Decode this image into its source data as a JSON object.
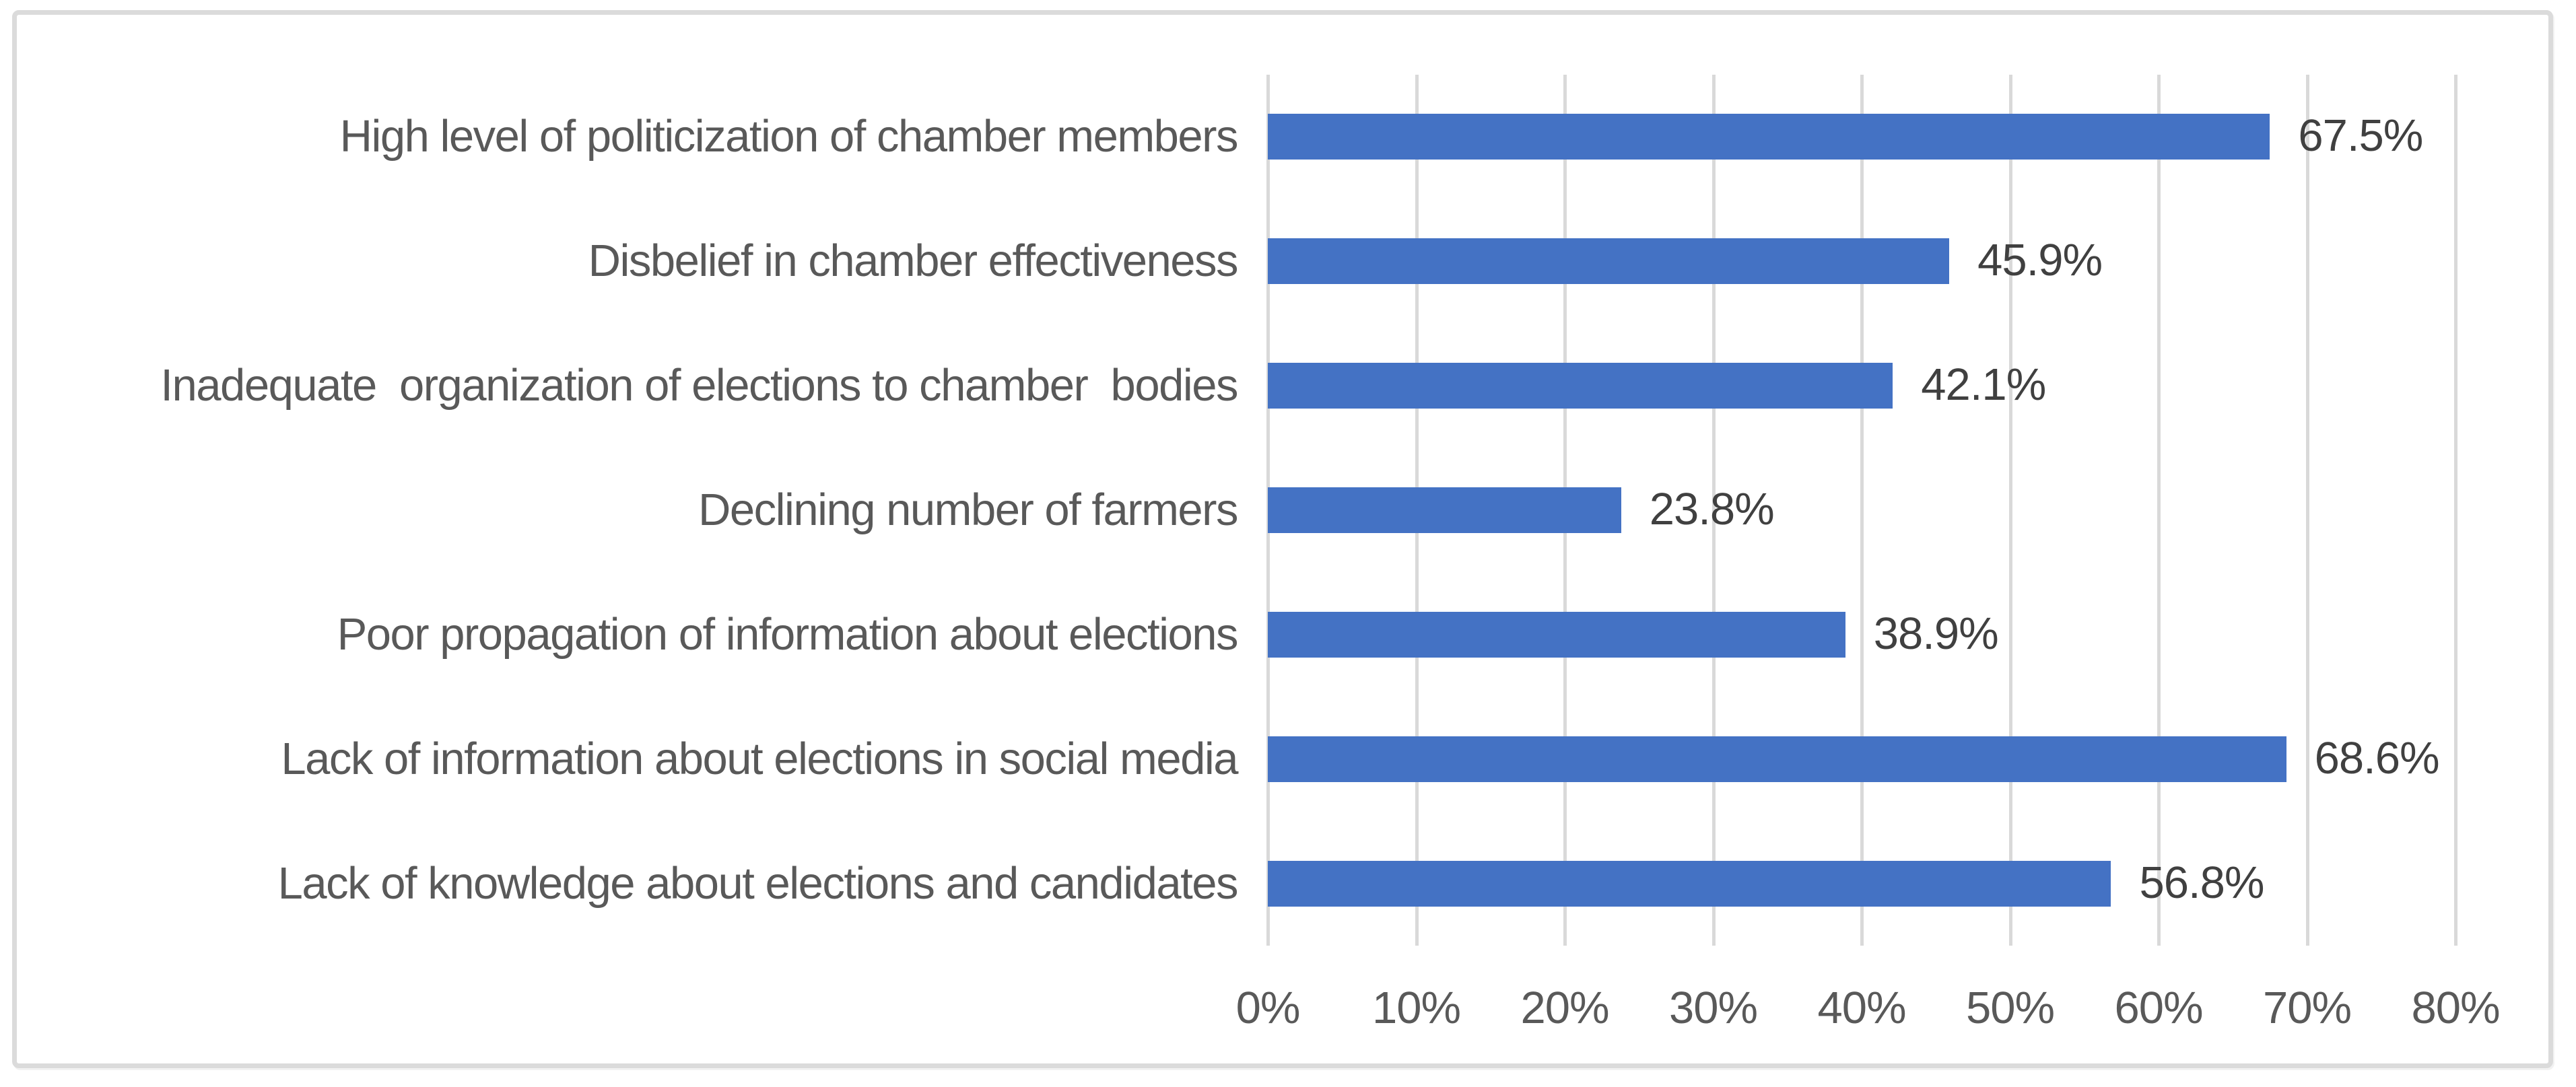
{
  "chart_data": {
    "type": "bar",
    "orientation": "horizontal",
    "title": "",
    "xlabel": "",
    "ylabel": "",
    "categories": [
      "High level of politicization of chamber members",
      "Disbelief in chamber effectiveness",
      "Inadequate  organization of elections to chamber  bodies",
      "Declining number of farmers",
      "Poor propagation of information about elections",
      "Lack of information about elections in social media",
      "Lack of knowledge about elections and candidates"
    ],
    "values": [
      67.5,
      45.9,
      42.1,
      23.8,
      38.9,
      68.6,
      56.8
    ],
    "value_labels": [
      "67.5%",
      "45.9%",
      "42.1%",
      "23.8%",
      "38.9%",
      "68.6%",
      "56.8%"
    ],
    "xlim": [
      0,
      80
    ],
    "x_ticks": [
      "0%",
      "10%",
      "20%",
      "30%",
      "40%",
      "50%",
      "60%",
      "70%",
      "80%"
    ],
    "grid": true,
    "legend": "none",
    "colors": {
      "bar": "#4472C4",
      "gridline": "#D9D9D9",
      "frame_border": "#DBDBDB",
      "category_text": "#595959",
      "value_text": "#404040",
      "axis_text": "#595959",
      "background": "#FFFFFF"
    }
  }
}
